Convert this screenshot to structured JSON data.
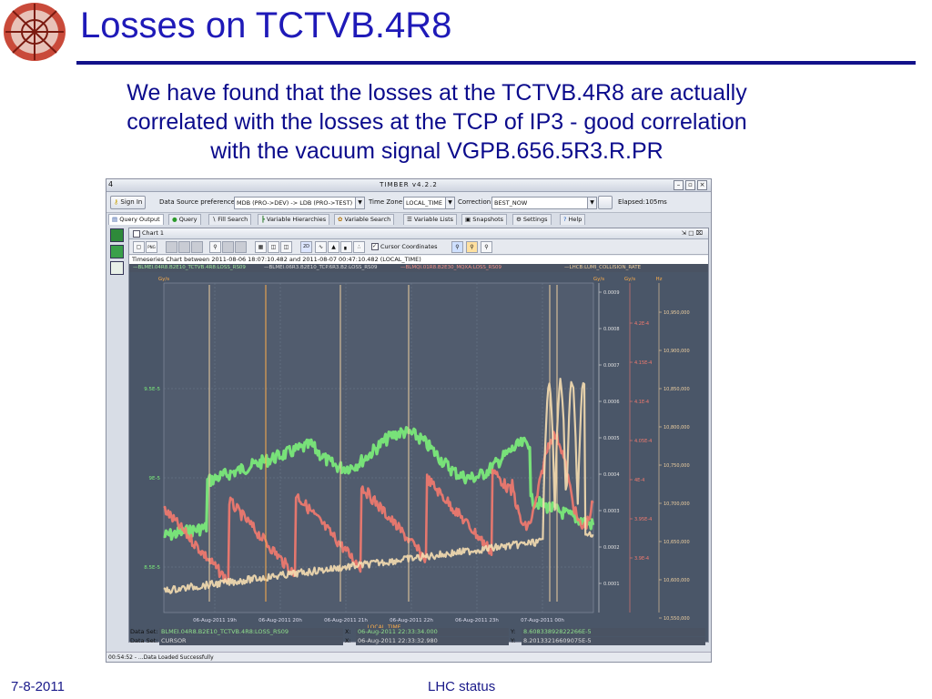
{
  "slide": {
    "title": "Losses on TCTVB.4R8",
    "subtitle_lines": [
      "We have found that the losses at the TCTVB.4R8 are actually",
      "correlated with the losses at the TCP of IP3 - good correlation",
      "with the vacuum signal VGPB.656.5R3.R.PR"
    ],
    "footer_date": "7-8-2011",
    "footer_center": "LHC status",
    "colors": {
      "title": "#1f1ab8",
      "rule": "#12118a",
      "body_text": "#0b0b8c"
    }
  },
  "timber": {
    "window_title": "TIMBER v4.2.2",
    "window_icon": "4",
    "window_buttons": [
      "–",
      "▫",
      "×"
    ],
    "toolbar": {
      "sign_in": "Sign In",
      "data_source_label": "Data Source preferences:",
      "data_source_value": "MDB (PRO->DEV)  -> LDB (PRO->TEST)",
      "time_zone_label": "Time Zone:",
      "time_zone_value": "LOCAL_TIME",
      "correction_label": "Correction",
      "correction_value": "BEST_NOW",
      "elapsed_label": "Elapsed:",
      "elapsed_value": "105ms"
    },
    "tabs": [
      "Query Output",
      "Query",
      "Fill Search",
      "Variable Hierarchies",
      "Variable Search",
      "Variable Lists",
      "Snapshots",
      "Settings",
      "Help"
    ],
    "chart_window": {
      "title": "Chart 1",
      "cursor_coordinates_label": "Cursor Coordinates",
      "tb_2d": "2D",
      "tb_png": "PNG",
      "header": "Timeseries Chart between 2011-08-06 18:07:10.482 and 2011-08-07 00:47:10.482 (LOCAL_TIME)",
      "legend": [
        "BLMEI.04R8.B2E10_TCTVB.4R8:LOSS_RS09",
        "BLMEI.06R3.B2E10_TCP.6R3.B2:LOSS_RS09",
        "BLMQI.01R8.B2E30_MQXA:LOSS_RS09",
        "LHCB:LUMI_COLLISION_RATE"
      ],
      "axis_units": {
        "left": "Gy/s",
        "right1": "Gy/s",
        "right2": "Gy/s",
        "right3": "Hz"
      },
      "xlabel": "LOCAL_TIME",
      "x_ticks": [
        "06-Aug-2011 19h",
        "06-Aug-2011 20h",
        "06-Aug-2011 21h",
        "06-Aug-2011 22h",
        "06-Aug-2011 23h",
        "07-Aug-2011 00h"
      ],
      "left_ticks": [
        "9.5E-5",
        "9E-5",
        "8.5E-5"
      ],
      "right1_ticks": [
        "0.0009",
        "0.0008",
        "0.0007",
        "0.0006",
        "0.0005",
        "0.0004",
        "0.0003",
        "0.0002",
        "0.0001"
      ],
      "right2_ticks": [
        "4.2E-4",
        "4.15E-4",
        "4.1E-4",
        "4.05E-4",
        "4E-4",
        "3.95E-4",
        "3.9E-4"
      ],
      "right3_ticks": [
        "10,950,000",
        "10,900,000",
        "10,850,000",
        "10,800,000",
        "10,750,000",
        "10,700,000",
        "10,650,000",
        "10,600,000",
        "10,550,000"
      ],
      "colors": {
        "background": "#4a5668",
        "green": "#7cf07a",
        "red": "#f47a6e",
        "cream": "#f5ddb0",
        "orange": "#ffae4a"
      }
    },
    "dataset_rows": [
      {
        "label": "Data Set:",
        "name": "BLMEI.04R8.B2E10_TCTVB.4R8:LOSS_RS09",
        "x_label": "X:",
        "x": "06-Aug-2011 22:33:34.000",
        "y_label": "Y:",
        "y": "8.60833892822266E-5"
      },
      {
        "label": "Data Set:",
        "name": "CURSOR",
        "x_label": "X:",
        "x": "06-Aug-2011 22:33:32.980",
        "y_label": "Y:",
        "y": "8.20133216609075E-5"
      }
    ],
    "status": "00:54:52 - ...Data Loaded Successfully"
  }
}
